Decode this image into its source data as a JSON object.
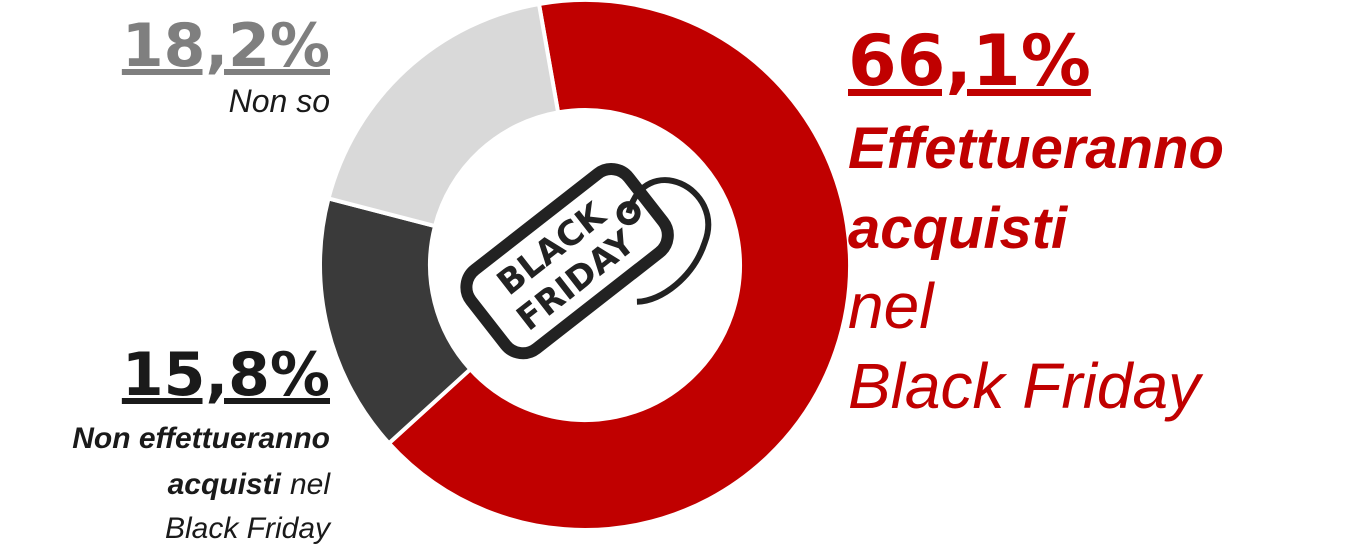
{
  "chart_data": {
    "type": "pie",
    "donut": true,
    "values": [
      66.1,
      15.8,
      18.2
    ],
    "value_labels": [
      "66,1%",
      "15,8%",
      "18,2%"
    ],
    "colors": [
      "#c00000",
      "#3a3a3a",
      "#d9d9d9"
    ],
    "label_colors": [
      "#c00000",
      "#1a1a1a",
      "#7f7f7f"
    ],
    "categories": [
      [
        [
          {
            "text": "Effettueranno",
            "bold": true
          }
        ],
        [
          {
            "text": "acquisti",
            "bold": true
          }
        ],
        [
          {
            "text": "nel",
            "bold": false
          }
        ],
        [
          {
            "text": "Black Friday",
            "bold": false
          }
        ]
      ],
      [
        [
          {
            "text": "Non effettueranno",
            "bold": true
          }
        ],
        [
          {
            "text": "acquisti",
            "bold": true
          },
          {
            "text": "nel",
            "bold": false
          }
        ],
        [
          {
            "text": "Black Friday",
            "bold": false
          }
        ]
      ],
      [
        [
          {
            "text": "Non so",
            "bold": false
          }
        ]
      ]
    ],
    "center_label": [
      "BLACK",
      "FRIDAY"
    ]
  }
}
